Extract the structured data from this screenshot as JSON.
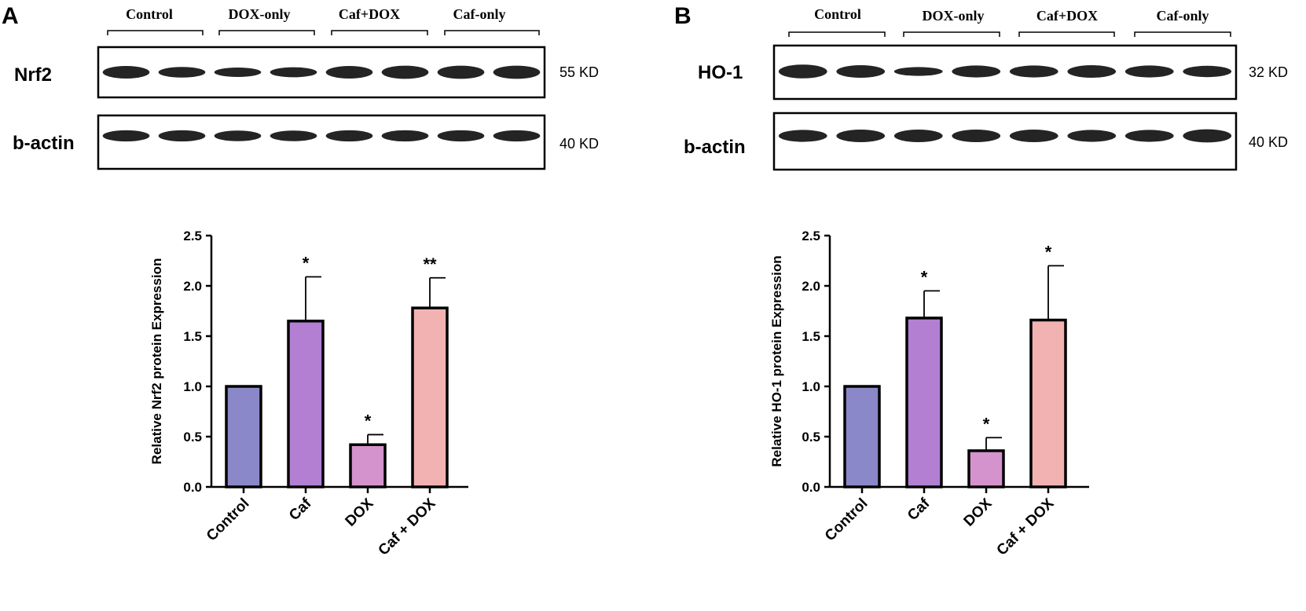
{
  "figure": {
    "panels": [
      {
        "letter": "A",
        "groups": [
          "Control",
          "DOX-only",
          "Caf+DOX",
          "Caf-only"
        ],
        "blots": [
          {
            "protein": "Nrf2",
            "kd": "55 KD",
            "bands": [
              1.0,
              0.85,
              0.75,
              0.8,
              1.0,
              1.05,
              1.05,
              1.05
            ]
          },
          {
            "protein": "b-actin",
            "kd": "40 KD",
            "bands": [
              0.95,
              0.95,
              0.9,
              0.9,
              0.95,
              0.95,
              0.95,
              0.95
            ]
          }
        ]
      },
      {
        "letter": "B",
        "groups": [
          "Control",
          "DOX-only",
          "Caf+DOX",
          "Caf-only"
        ],
        "blots": [
          {
            "protein": "HO-1",
            "kd": "32 KD",
            "bands": [
              1.1,
              1.0,
              0.7,
              0.95,
              0.95,
              1.0,
              0.95,
              0.9
            ]
          },
          {
            "protein": "b-actin",
            "kd": "40 KD",
            "bands": [
              0.95,
              1.0,
              1.0,
              1.0,
              1.0,
              0.95,
              0.95,
              1.05
            ]
          }
        ]
      }
    ]
  },
  "chart_data": [
    {
      "type": "bar",
      "categories": [
        "Control",
        "Caf",
        "DOX",
        "Caf + DOX"
      ],
      "values": [
        1.0,
        1.65,
        0.42,
        1.78
      ],
      "errors": [
        0,
        0.44,
        0.1,
        0.3
      ],
      "significance": [
        "",
        "*",
        "*",
        "**"
      ],
      "colors": [
        "#8a88c8",
        "#b27fd3",
        "#d493cc",
        "#f2b2b2"
      ],
      "title": "",
      "xlabel": "",
      "ylabel": "Relative Nrf2 protein Expression",
      "ylim": [
        0,
        2.5
      ],
      "yticks": [
        "0.0",
        "0.5",
        "1.0",
        "1.5",
        "2.0",
        "2.5"
      ],
      "grid": false
    },
    {
      "type": "bar",
      "categories": [
        "Control",
        "Caf",
        "DOX",
        "Caf + DOX"
      ],
      "values": [
        1.0,
        1.68,
        0.36,
        1.66
      ],
      "errors": [
        0,
        0.27,
        0.13,
        0.54
      ],
      "significance": [
        "",
        "*",
        "*",
        "*"
      ],
      "colors": [
        "#8a88c8",
        "#b27fd3",
        "#d493cc",
        "#f2b2b2"
      ],
      "title": "",
      "xlabel": "",
      "ylabel": "Relative HO-1 protein Expression",
      "ylim": [
        0,
        2.5
      ],
      "yticks": [
        "0.0",
        "0.5",
        "1.0",
        "1.5",
        "2.0",
        "2.5"
      ],
      "grid": false
    }
  ]
}
